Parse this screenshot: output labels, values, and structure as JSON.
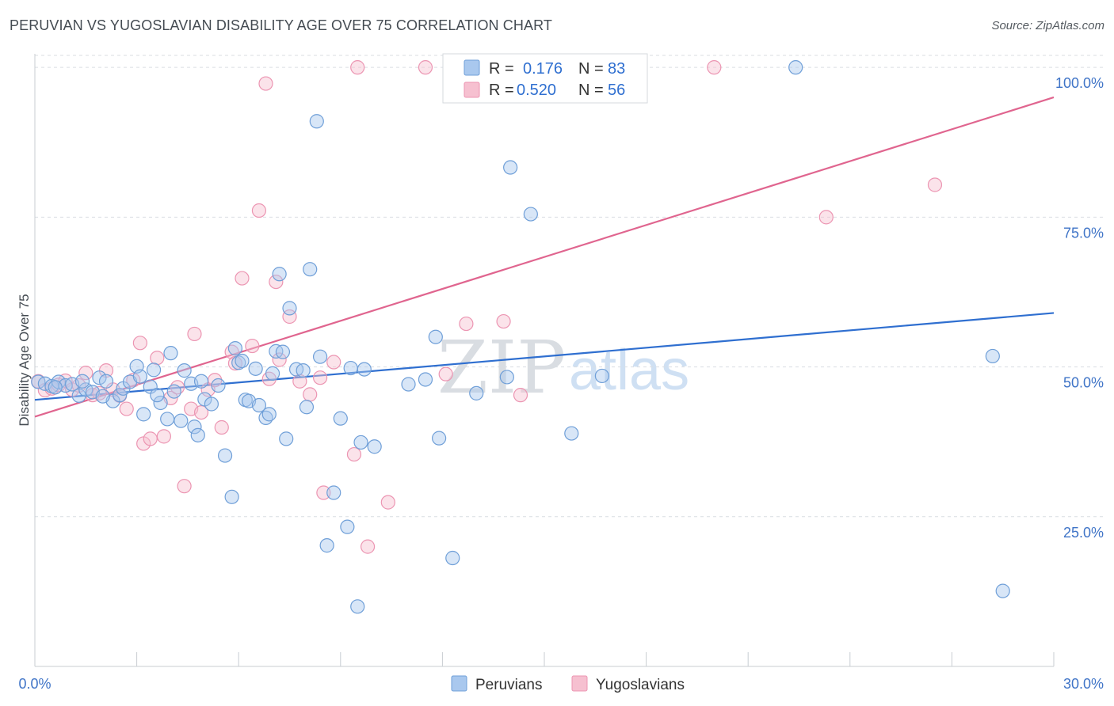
{
  "header": {
    "title": "PERUVIAN VS YUGOSLAVIAN DISABILITY AGE OVER 75 CORRELATION CHART",
    "source": "Source: ZipAtlas.com"
  },
  "colors": {
    "peruvian_fill": "#a9c8ee",
    "peruvian_stroke": "#6f9fd8",
    "peruvian_line": "#2f6fd0",
    "yugoslavian_fill": "#f6c0d0",
    "yugoslavian_stroke": "#ec95b2",
    "yugoslavian_line": "#e0658f",
    "grid": "#d9dde2",
    "axis_label": "#3f74c7"
  },
  "legend": {
    "rows": [
      {
        "r_label": "R =",
        "r_value": "0.176",
        "n_label": "N =",
        "n_value": "83"
      },
      {
        "r_label": "R =",
        "r_value": "0.520",
        "n_label": "N =",
        "n_value": "56"
      }
    ]
  },
  "watermark": {
    "zip": "ZIP",
    "atlas": "atlas"
  },
  "chart_data": {
    "type": "scatter",
    "title": "PERUVIAN VS YUGOSLAVIAN DISABILITY AGE OVER 75 CORRELATION CHART",
    "xlabel": "",
    "ylabel": "Disability Age Over 75",
    "xlim": [
      0,
      30
    ],
    "ylim": [
      0,
      102
    ],
    "x_tick_labels": [
      "0.0%",
      "30.0%"
    ],
    "y_ticks": [
      25,
      50,
      75,
      100
    ],
    "y_tick_labels": [
      "25.0%",
      "50.0%",
      "75.0%",
      "100.0%"
    ],
    "grid": true,
    "legend_position": "top-center",
    "series": [
      {
        "name": "Peruvians",
        "R": 0.176,
        "N": 83,
        "trend": {
          "x": [
            0,
            30
          ],
          "y": [
            44.5,
            59.0
          ]
        },
        "points": [
          [
            0.1,
            47.5
          ],
          [
            0.3,
            47.2
          ],
          [
            0.5,
            46.8
          ],
          [
            0.7,
            47.5
          ],
          [
            0.9,
            46.9
          ],
          [
            1.1,
            47.1
          ],
          [
            1.3,
            45.2
          ],
          [
            1.5,
            46.2
          ],
          [
            1.7,
            45.8
          ],
          [
            1.9,
            48.2
          ],
          [
            2.1,
            47.6
          ],
          [
            2.3,
            44.3
          ],
          [
            2.5,
            45.3
          ],
          [
            2.6,
            46.4
          ],
          [
            2.8,
            47.5
          ],
          [
            3.0,
            50.1
          ],
          [
            3.1,
            48.4
          ],
          [
            3.2,
            42.1
          ],
          [
            3.4,
            46.7
          ],
          [
            3.5,
            49.5
          ],
          [
            3.7,
            44.0
          ],
          [
            3.9,
            41.3
          ],
          [
            4.0,
            52.3
          ],
          [
            4.1,
            45.9
          ],
          [
            4.3,
            41.0
          ],
          [
            4.4,
            49.4
          ],
          [
            4.6,
            47.2
          ],
          [
            4.7,
            40.0
          ],
          [
            4.8,
            38.6
          ],
          [
            5.0,
            44.6
          ],
          [
            5.2,
            43.8
          ],
          [
            5.4,
            46.9
          ],
          [
            5.6,
            35.2
          ],
          [
            5.8,
            28.3
          ],
          [
            5.9,
            53.1
          ],
          [
            6.0,
            50.7
          ],
          [
            6.2,
            44.5
          ],
          [
            6.3,
            44.3
          ],
          [
            6.5,
            49.7
          ],
          [
            6.6,
            43.6
          ],
          [
            6.8,
            41.5
          ],
          [
            6.9,
            42.1
          ],
          [
            7.0,
            48.9
          ],
          [
            7.1,
            52.6
          ],
          [
            7.2,
            65.5
          ],
          [
            7.4,
            38.0
          ],
          [
            7.5,
            59.8
          ],
          [
            7.7,
            49.6
          ],
          [
            7.9,
            49.4
          ],
          [
            8.0,
            43.3
          ],
          [
            8.1,
            66.3
          ],
          [
            8.3,
            91.0
          ],
          [
            8.4,
            51.7
          ],
          [
            8.6,
            20.2
          ],
          [
            8.8,
            29.0
          ],
          [
            9.0,
            41.4
          ],
          [
            9.2,
            23.3
          ],
          [
            9.5,
            10.0
          ],
          [
            9.6,
            37.4
          ],
          [
            9.7,
            49.6
          ],
          [
            10.0,
            36.7
          ],
          [
            11.5,
            47.9
          ],
          [
            11.8,
            55.0
          ],
          [
            11.9,
            38.1
          ],
          [
            12.3,
            18.1
          ],
          [
            13.0,
            45.6
          ],
          [
            13.9,
            48.3
          ],
          [
            14.0,
            83.3
          ],
          [
            14.6,
            75.5
          ],
          [
            15.8,
            38.9
          ],
          [
            16.7,
            48.5
          ],
          [
            22.4,
            100.0
          ],
          [
            28.2,
            51.8
          ],
          [
            28.5,
            12.6
          ],
          [
            1.4,
            47.6
          ],
          [
            2.0,
            45.1
          ],
          [
            4.9,
            47.6
          ],
          [
            7.3,
            52.5
          ],
          [
            0.6,
            46.6
          ],
          [
            3.6,
            45.3
          ],
          [
            6.1,
            51.0
          ],
          [
            9.3,
            49.8
          ],
          [
            11.0,
            47.1
          ]
        ]
      },
      {
        "name": "Yugoslavians",
        "R": 0.52,
        "N": 56,
        "trend": {
          "x": [
            0,
            30
          ],
          "y": [
            41.7,
            95.0
          ]
        },
        "points": [
          [
            0.1,
            47.6
          ],
          [
            0.3,
            46.1
          ],
          [
            0.5,
            46.4
          ],
          [
            0.7,
            47.0
          ],
          [
            0.9,
            47.7
          ],
          [
            1.1,
            46.2
          ],
          [
            1.3,
            46.9
          ],
          [
            1.5,
            49.0
          ],
          [
            1.7,
            45.3
          ],
          [
            1.9,
            45.6
          ],
          [
            2.1,
            49.4
          ],
          [
            2.3,
            46.2
          ],
          [
            2.5,
            45.2
          ],
          [
            2.7,
            43.0
          ],
          [
            2.9,
            47.8
          ],
          [
            3.1,
            54.0
          ],
          [
            3.2,
            37.2
          ],
          [
            3.4,
            38.0
          ],
          [
            3.6,
            51.5
          ],
          [
            3.8,
            38.4
          ],
          [
            4.0,
            44.8
          ],
          [
            4.2,
            46.6
          ],
          [
            4.4,
            30.1
          ],
          [
            4.6,
            43.0
          ],
          [
            4.7,
            55.5
          ],
          [
            4.9,
            42.4
          ],
          [
            5.1,
            46.2
          ],
          [
            5.3,
            47.8
          ],
          [
            5.5,
            39.9
          ],
          [
            5.8,
            52.5
          ],
          [
            5.9,
            50.6
          ],
          [
            6.1,
            64.8
          ],
          [
            6.4,
            53.5
          ],
          [
            6.6,
            76.1
          ],
          [
            6.8,
            97.3
          ],
          [
            6.9,
            48.0
          ],
          [
            7.1,
            64.2
          ],
          [
            7.2,
            51.2
          ],
          [
            7.5,
            58.4
          ],
          [
            7.8,
            47.6
          ],
          [
            8.1,
            45.4
          ],
          [
            8.4,
            48.2
          ],
          [
            8.5,
            29.0
          ],
          [
            8.8,
            50.8
          ],
          [
            9.4,
            35.4
          ],
          [
            9.5,
            100.0
          ],
          [
            9.8,
            20.0
          ],
          [
            10.4,
            27.4
          ],
          [
            11.5,
            100.0
          ],
          [
            12.1,
            48.8
          ],
          [
            12.7,
            57.2
          ],
          [
            13.8,
            57.6
          ],
          [
            14.3,
            45.3
          ],
          [
            20.0,
            100.0
          ],
          [
            23.3,
            75.0
          ],
          [
            26.5,
            80.4
          ]
        ]
      }
    ]
  }
}
